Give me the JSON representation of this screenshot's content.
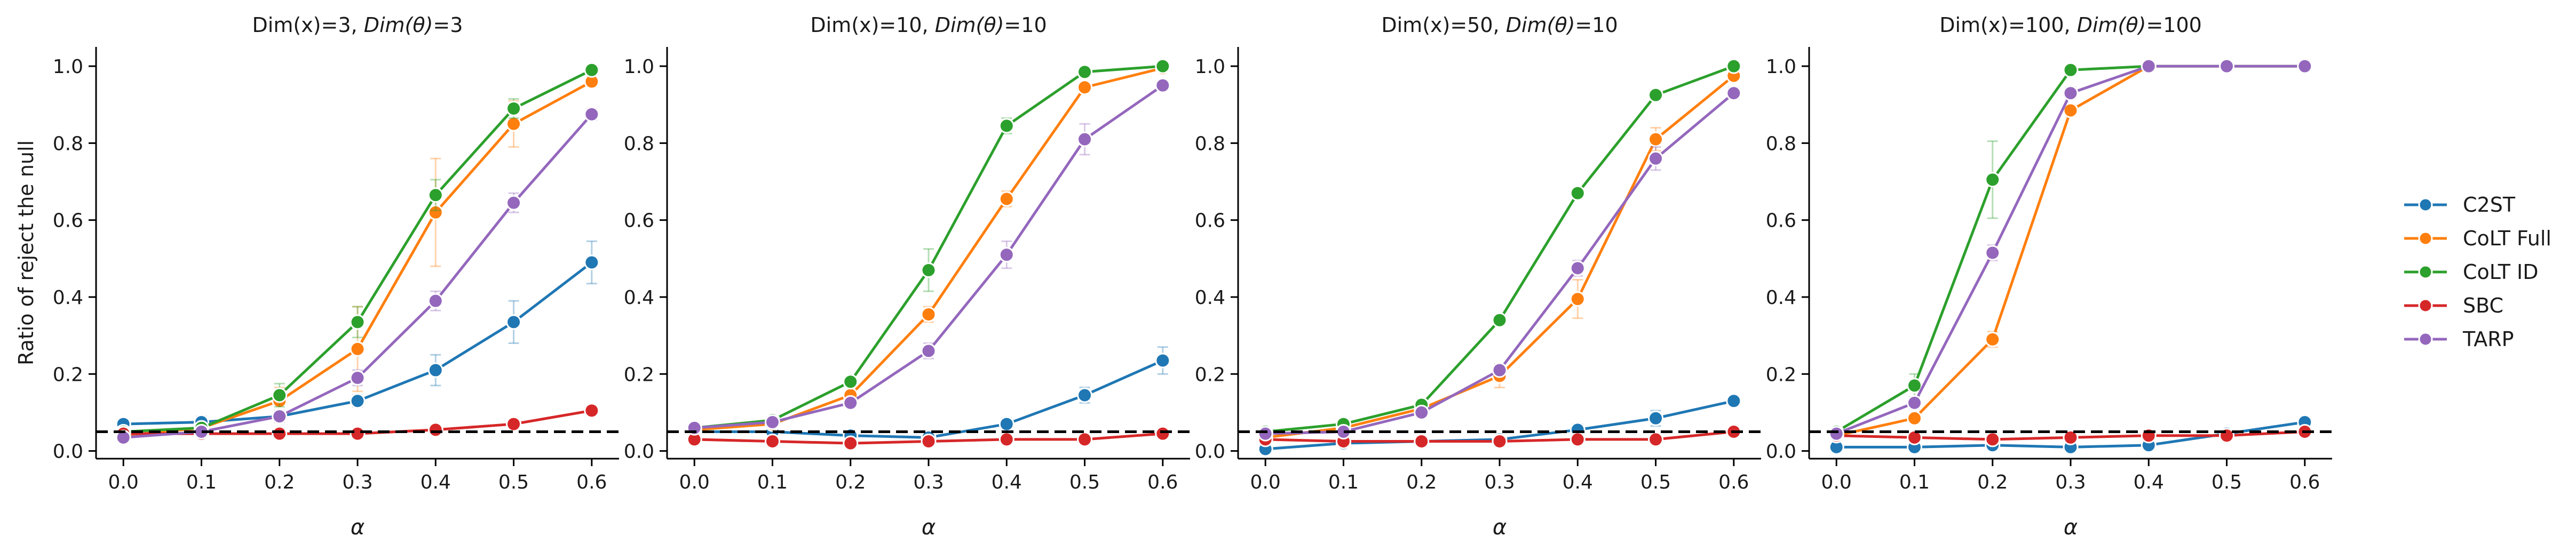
{
  "chart_data": [
    {
      "type": "line",
      "title_prefix": "Dim(x)=3, ",
      "title_italic": "Dim(θ)",
      "title_suffix": "=3",
      "xlabel": "α",
      "ylabel": "Ratio of reject the null",
      "x": [
        0.0,
        0.1,
        0.2,
        0.3,
        0.4,
        0.5,
        0.6
      ],
      "xticks": [
        "0.0",
        "0.1",
        "0.2",
        "0.3",
        "0.4",
        "0.5",
        "0.6"
      ],
      "yticks": [
        "0.0",
        "0.2",
        "0.4",
        "0.6",
        "0.8",
        "1.0"
      ],
      "ylim": [
        -0.02,
        1.05
      ],
      "xlim": [
        -0.035,
        0.635
      ],
      "reference_line": 0.05,
      "series": [
        {
          "name": "C2ST",
          "values": [
            0.07,
            0.075,
            0.09,
            0.13,
            0.21,
            0.335,
            0.49
          ],
          "errors": [
            0.008,
            0.015,
            0.01,
            0.015,
            0.04,
            0.055,
            0.055
          ]
        },
        {
          "name": "CoLT Full",
          "values": [
            0.04,
            0.06,
            0.13,
            0.265,
            0.62,
            0.85,
            0.96
          ],
          "errors": [
            0.008,
            0.01,
            0.035,
            0.11,
            0.14,
            0.06,
            0.01
          ]
        },
        {
          "name": "CoLT ID",
          "values": [
            0.05,
            0.06,
            0.145,
            0.335,
            0.665,
            0.89,
            0.99
          ],
          "errors": [
            0.008,
            0.012,
            0.03,
            0.04,
            0.04,
            0.025,
            0.005
          ]
        },
        {
          "name": "SBC",
          "values": [
            0.045,
            0.045,
            0.045,
            0.045,
            0.055,
            0.07,
            0.105
          ],
          "errors": [
            0.005,
            0.005,
            0.005,
            0.005,
            0.006,
            0.006,
            0.008
          ]
        },
        {
          "name": "TARP",
          "values": [
            0.035,
            0.05,
            0.09,
            0.19,
            0.39,
            0.645,
            0.875
          ],
          "errors": [
            0.008,
            0.012,
            0.015,
            0.02,
            0.025,
            0.025,
            0.015
          ]
        }
      ]
    },
    {
      "type": "line",
      "title_prefix": "Dim(x)=10, ",
      "title_italic": "Dim(θ)",
      "title_suffix": "=10",
      "xlabel": "α",
      "ylabel": "",
      "x": [
        0.0,
        0.1,
        0.2,
        0.3,
        0.4,
        0.5,
        0.6
      ],
      "xticks": [
        "0.0",
        "0.1",
        "0.2",
        "0.3",
        "0.4",
        "0.5",
        "0.6"
      ],
      "yticks": [
        "0.0",
        "0.2",
        "0.4",
        "0.6",
        "0.8",
        "1.0"
      ],
      "ylim": [
        -0.02,
        1.05
      ],
      "xlim": [
        -0.035,
        0.635
      ],
      "reference_line": 0.05,
      "series": [
        {
          "name": "C2ST",
          "values": [
            0.05,
            0.05,
            0.04,
            0.035,
            0.07,
            0.145,
            0.235
          ],
          "errors": [
            0.005,
            0.005,
            0.005,
            0.005,
            0.015,
            0.02,
            0.035
          ]
        },
        {
          "name": "CoLT Full",
          "values": [
            0.055,
            0.07,
            0.145,
            0.355,
            0.655,
            0.945,
            0.995
          ],
          "errors": [
            0.005,
            0.008,
            0.01,
            0.02,
            0.02,
            0.01,
            0.003
          ]
        },
        {
          "name": "CoLT ID",
          "values": [
            0.06,
            0.08,
            0.18,
            0.47,
            0.845,
            0.985,
            1.0
          ],
          "errors": [
            0.005,
            0.008,
            0.01,
            0.055,
            0.02,
            0.005,
            0.002
          ]
        },
        {
          "name": "SBC",
          "values": [
            0.03,
            0.025,
            0.02,
            0.025,
            0.03,
            0.03,
            0.045
          ],
          "errors": [
            0.004,
            0.004,
            0.004,
            0.004,
            0.004,
            0.004,
            0.004
          ]
        },
        {
          "name": "TARP",
          "values": [
            0.06,
            0.075,
            0.125,
            0.26,
            0.51,
            0.81,
            0.95
          ],
          "errors": [
            0.005,
            0.008,
            0.01,
            0.02,
            0.035,
            0.04,
            0.01
          ]
        }
      ]
    },
    {
      "type": "line",
      "title_prefix": "Dim(x)=50, ",
      "title_italic": "Dim(θ)",
      "title_suffix": "=10",
      "xlabel": "α",
      "ylabel": "",
      "x": [
        0.0,
        0.1,
        0.2,
        0.3,
        0.4,
        0.5,
        0.6
      ],
      "xticks": [
        "0.0",
        "0.1",
        "0.2",
        "0.3",
        "0.4",
        "0.5",
        "0.6"
      ],
      "yticks": [
        "0.0",
        "0.2",
        "0.4",
        "0.6",
        "0.8",
        "1.0"
      ],
      "ylim": [
        -0.02,
        1.05
      ],
      "xlim": [
        -0.035,
        0.635
      ],
      "reference_line": 0.05,
      "series": [
        {
          "name": "C2ST",
          "values": [
            0.005,
            0.02,
            0.025,
            0.03,
            0.055,
            0.085,
            0.13
          ],
          "errors": [
            0.004,
            0.01,
            0.005,
            0.008,
            0.015,
            0.02,
            0.01
          ]
        },
        {
          "name": "CoLT Full",
          "values": [
            0.035,
            0.06,
            0.11,
            0.195,
            0.395,
            0.81,
            0.975
          ],
          "errors": [
            0.005,
            0.008,
            0.01,
            0.03,
            0.05,
            0.03,
            0.008
          ]
        },
        {
          "name": "CoLT ID",
          "values": [
            0.05,
            0.07,
            0.12,
            0.34,
            0.67,
            0.925,
            1.0
          ],
          "errors": [
            0.005,
            0.008,
            0.01,
            0.012,
            0.012,
            0.01,
            0.002
          ]
        },
        {
          "name": "SBC",
          "values": [
            0.03,
            0.025,
            0.025,
            0.025,
            0.03,
            0.03,
            0.05
          ],
          "errors": [
            0.004,
            0.004,
            0.004,
            0.004,
            0.004,
            0.004,
            0.004
          ]
        },
        {
          "name": "TARP",
          "values": [
            0.045,
            0.05,
            0.1,
            0.21,
            0.475,
            0.76,
            0.93
          ],
          "errors": [
            0.005,
            0.008,
            0.01,
            0.015,
            0.02,
            0.03,
            0.015
          ]
        }
      ]
    },
    {
      "type": "line",
      "title_prefix": "Dim(x)=100, ",
      "title_italic": "Dim(θ)",
      "title_suffix": "=100",
      "xlabel": "α",
      "ylabel": "",
      "x": [
        0.0,
        0.1,
        0.2,
        0.3,
        0.4,
        0.5,
        0.6
      ],
      "xticks": [
        "0.0",
        "0.1",
        "0.2",
        "0.3",
        "0.4",
        "0.5",
        "0.6"
      ],
      "yticks": [
        "0.0",
        "0.2",
        "0.4",
        "0.6",
        "0.8",
        "1.0"
      ],
      "ylim": [
        -0.02,
        1.05
      ],
      "xlim": [
        -0.035,
        0.635
      ],
      "reference_line": 0.05,
      "series": [
        {
          "name": "C2ST",
          "values": [
            0.01,
            0.01,
            0.015,
            0.01,
            0.015,
            0.045,
            0.075
          ],
          "errors": [
            0.003,
            0.003,
            0.004,
            0.003,
            0.004,
            0.008,
            0.012
          ]
        },
        {
          "name": "CoLT Full",
          "values": [
            0.04,
            0.085,
            0.29,
            0.885,
            1.0,
            1.0,
            1.0
          ],
          "errors": [
            0.005,
            0.01,
            0.02,
            0.015,
            0.002,
            0.002,
            0.002
          ]
        },
        {
          "name": "CoLT ID",
          "values": [
            0.05,
            0.17,
            0.705,
            0.99,
            1.0,
            1.0,
            1.0
          ],
          "errors": [
            0.005,
            0.03,
            0.1,
            0.005,
            0.002,
            0.002,
            0.002
          ]
        },
        {
          "name": "SBC",
          "values": [
            0.04,
            0.035,
            0.03,
            0.035,
            0.04,
            0.04,
            0.05
          ],
          "errors": [
            0.004,
            0.004,
            0.004,
            0.004,
            0.004,
            0.004,
            0.004
          ]
        },
        {
          "name": "TARP",
          "values": [
            0.045,
            0.125,
            0.515,
            0.93,
            1.0,
            1.0,
            1.0
          ],
          "errors": [
            0.005,
            0.015,
            0.02,
            0.015,
            0.002,
            0.002,
            0.002
          ]
        }
      ]
    }
  ],
  "legend": {
    "placement": "right",
    "entries": [
      "C2ST",
      "CoLT Full",
      "CoLT ID",
      "SBC",
      "TARP"
    ]
  },
  "colors": {
    "C2ST": "#1f77b4",
    "CoLT Full": "#ff7f0e",
    "CoLT ID": "#2ca02c",
    "SBC": "#d62728",
    "TARP": "#9467bd",
    "reference": "#000000",
    "axis": "#000000"
  }
}
